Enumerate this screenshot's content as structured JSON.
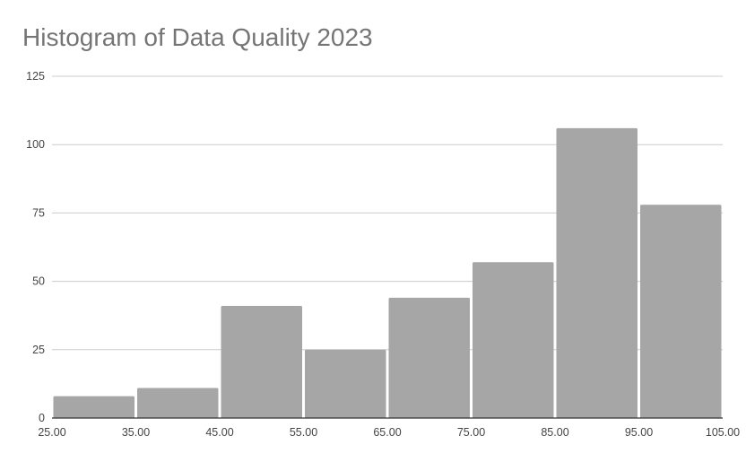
{
  "chart_data": {
    "type": "bar",
    "title": "Histogram of Data Quality 2023",
    "xlabel": "",
    "ylabel": "",
    "bin_edges": [
      25,
      35,
      45,
      55,
      65,
      75,
      85,
      95,
      105
    ],
    "x_tick_labels": [
      "25.00",
      "35.00",
      "45.00",
      "55.00",
      "65.00",
      "75.00",
      "85.00",
      "95.00",
      "105.00"
    ],
    "values": [
      8,
      11,
      41,
      25,
      44,
      57,
      106,
      78
    ],
    "y_ticks": [
      0,
      25,
      50,
      75,
      100,
      125
    ],
    "y_tick_labels": [
      "0",
      "25",
      "50",
      "75",
      "100",
      "125"
    ],
    "xlim": [
      25,
      105
    ],
    "ylim": [
      0,
      125
    ],
    "grid": true,
    "legend": "none",
    "bar_color": "#a6a6a6",
    "grid_color": "#cccccc",
    "axis_color": "#333333"
  }
}
